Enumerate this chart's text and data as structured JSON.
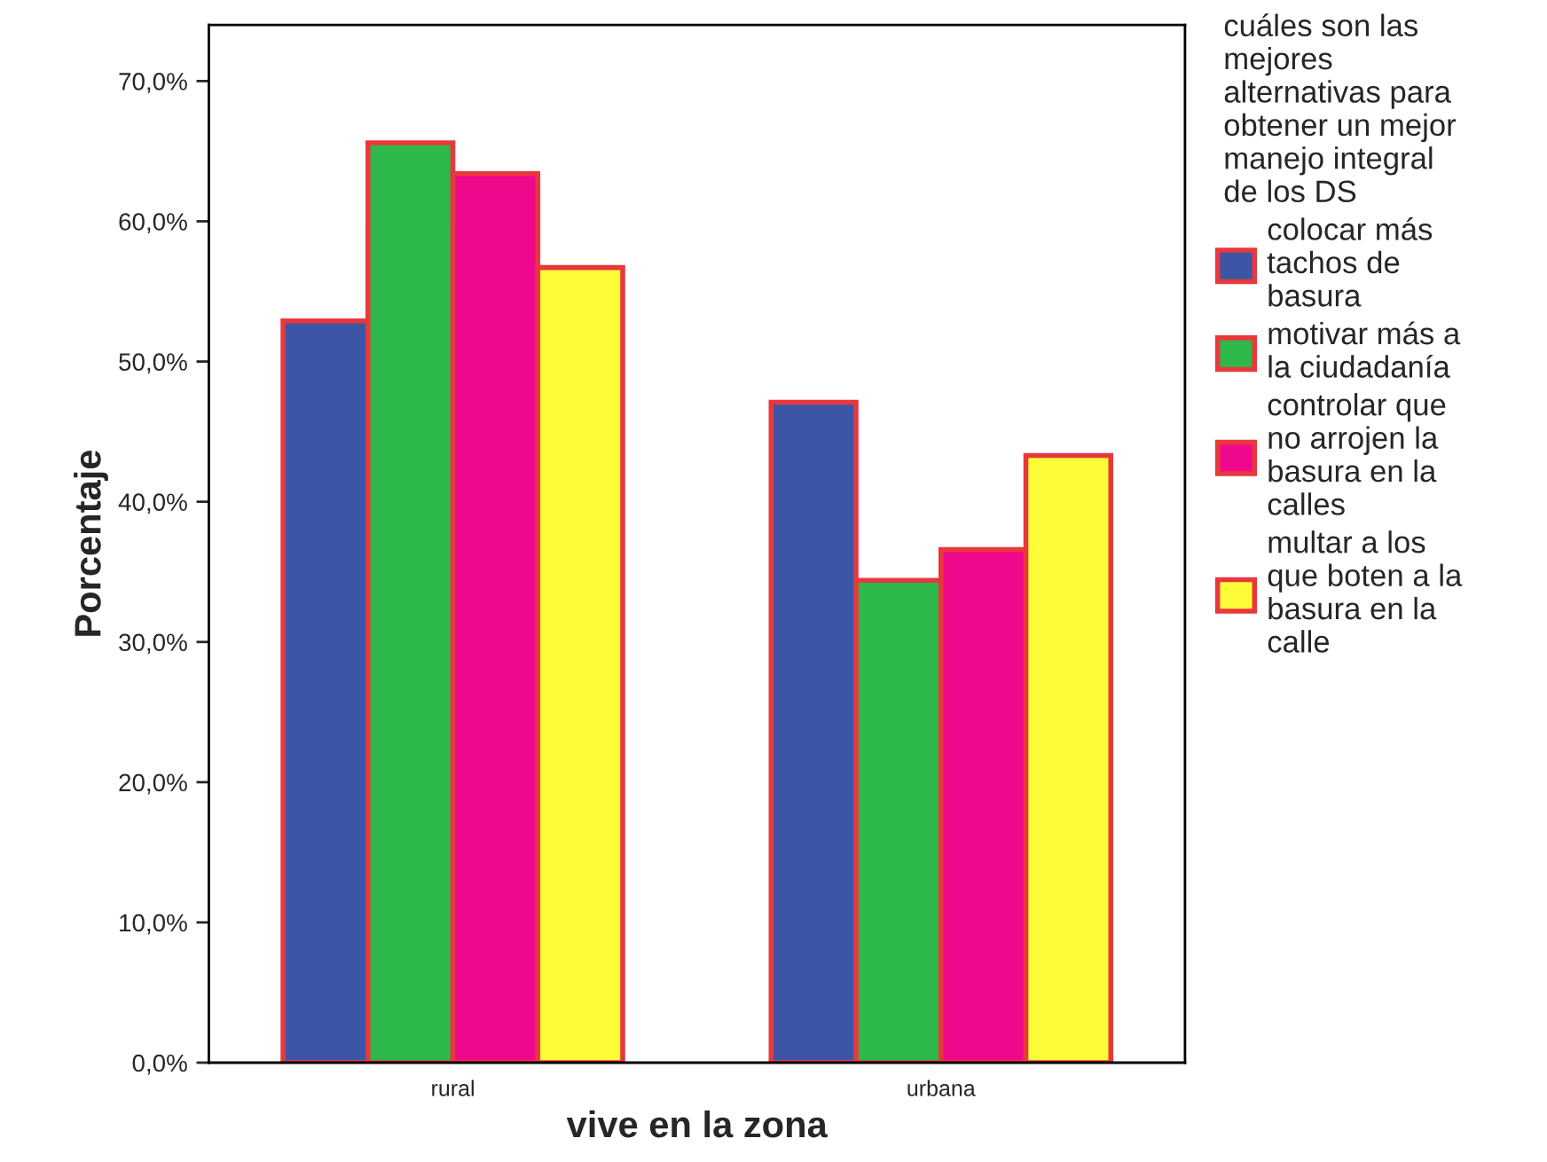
{
  "chart_data": {
    "type": "bar",
    "xlabel": "vive en la zona",
    "ylabel": "Porcentaje",
    "legend_title": "cuáles son las mejores alternativas para obtener un mejor manejo integral de los DS",
    "categories": [
      "rural",
      "urbana"
    ],
    "series": [
      {
        "name": "colocar más tachos de basura",
        "color": "#3c55a5",
        "values": [
          52.9,
          47.1
        ]
      },
      {
        "name": "motivar más a la ciudadanía",
        "color": "#2db84b",
        "values": [
          65.6,
          34.4
        ]
      },
      {
        "name": "controlar que no arrojen la basura en la calles",
        "color": "#f0088c",
        "values": [
          63.4,
          36.6
        ]
      },
      {
        "name": "multar a los que boten a la basura en la calle",
        "color": "#fdfc38",
        "values": [
          56.7,
          43.3
        ]
      }
    ],
    "ylim": [
      0,
      74
    ],
    "yticks": [
      {
        "value": 0,
        "label": "0,0%"
      },
      {
        "value": 10,
        "label": "10,0%"
      },
      {
        "value": 20,
        "label": "20,0%"
      },
      {
        "value": 30,
        "label": "30,0%"
      },
      {
        "value": 40,
        "label": "40,0%"
      },
      {
        "value": 50,
        "label": "50,0%"
      },
      {
        "value": 60,
        "label": "60,0%"
      },
      {
        "value": 70,
        "label": "70,0%"
      }
    ],
    "grid": false,
    "legend": "right"
  }
}
